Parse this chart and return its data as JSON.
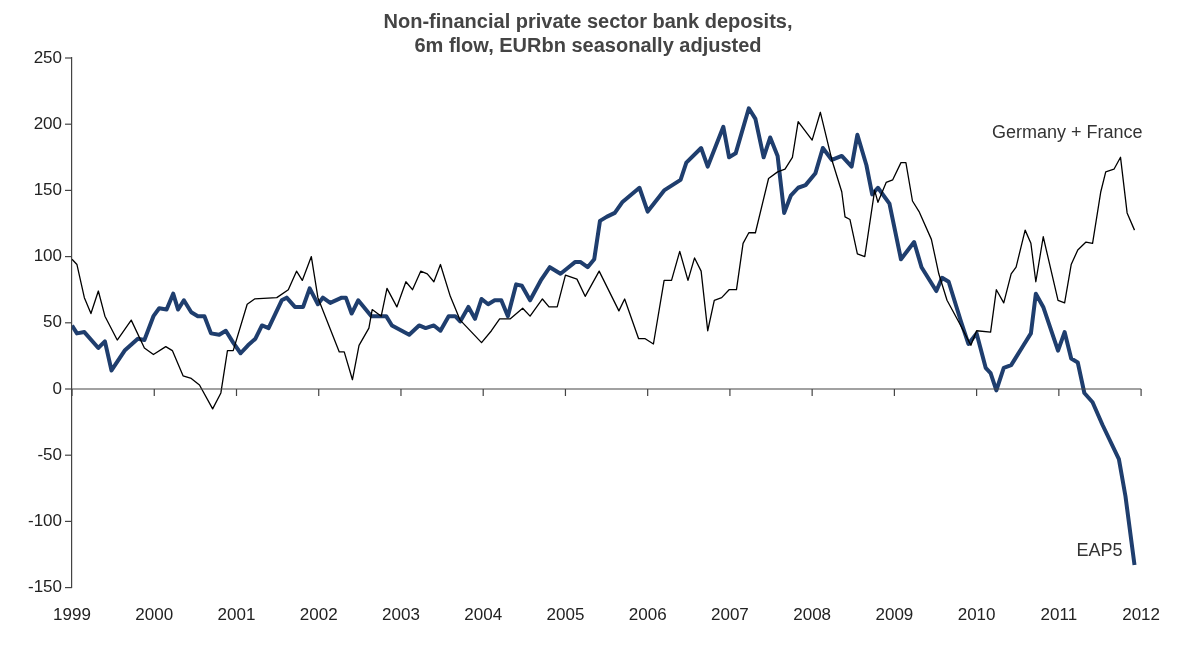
{
  "chart_data": {
    "type": "line",
    "title": "Non-financial private sector bank deposits,\n6m flow, EURbn seasonally adjusted",
    "xlim": [
      1999,
      2012
    ],
    "xticks": [
      1999,
      2000,
      2001,
      2002,
      2003,
      2004,
      2005,
      2006,
      2007,
      2008,
      2009,
      2010,
      2011,
      2012
    ],
    "ylim": [
      -150,
      250
    ],
    "yticks": [
      -150,
      -100,
      -50,
      0,
      50,
      100,
      150,
      200,
      250
    ],
    "legend": false,
    "marker": "none",
    "series": [
      {
        "name": "Germany + France",
        "color": "#000000",
        "x": [
          1999.0,
          1999.06,
          1999.15,
          1999.23,
          1999.32,
          1999.4,
          1999.55,
          1999.72,
          1999.88,
          1999.99,
          2000.14,
          2000.22,
          2000.35,
          2000.45,
          2000.55,
          2000.71,
          2000.81,
          2000.89,
          2000.96,
          2001.13,
          2001.22,
          2001.49,
          2001.63,
          2001.73,
          2001.8,
          2001.91,
          2001.99,
          2002.25,
          2002.31,
          2002.41,
          2002.49,
          2002.61,
          2002.65,
          2002.76,
          2002.83,
          2002.95,
          2003.06,
          2003.14,
          2003.24,
          2003.32,
          2003.4,
          2003.48,
          2003.6,
          2003.72,
          2003.98,
          2004.1,
          2004.2,
          2004.33,
          2004.48,
          2004.57,
          2004.72,
          2004.8,
          2004.9,
          2005.0,
          2005.14,
          2005.24,
          2005.41,
          2005.65,
          2005.72,
          2005.89,
          2005.97,
          2006.07,
          2006.2,
          2006.29,
          2006.39,
          2006.49,
          2006.57,
          2006.65,
          2006.73,
          2006.81,
          2006.9,
          2006.99,
          2007.08,
          2007.16,
          2007.23,
          2007.31,
          2007.47,
          2007.58,
          2007.67,
          2007.76,
          2007.83,
          2008.0,
          2008.1,
          2008.24,
          2008.36,
          2008.4,
          2008.46,
          2008.55,
          2008.64,
          2008.76,
          2008.8,
          2008.9,
          2008.98,
          2009.08,
          2009.14,
          2009.22,
          2009.3,
          2009.45,
          2009.54,
          2009.64,
          2009.78,
          2009.93,
          2010.0,
          2010.17,
          2010.24,
          2010.33,
          2010.42,
          2010.48,
          2010.59,
          2010.66,
          2010.72,
          2010.81,
          2010.99,
          2011.07,
          2011.15,
          2011.23,
          2011.33,
          2011.41,
          2011.51,
          2011.57,
          2011.67,
          2011.75,
          2011.83,
          2011.92
        ],
        "values": [
          98,
          94,
          69,
          57,
          74,
          55,
          37,
          52,
          31,
          26,
          32,
          29,
          10,
          8,
          3,
          -15,
          -3,
          29,
          29,
          64,
          68,
          69,
          75,
          89,
          82,
          100,
          69,
          28,
          28,
          7,
          33,
          46,
          60,
          55,
          76,
          62,
          81,
          75,
          89,
          87,
          81,
          94,
          70,
          52,
          35,
          44,
          53,
          53,
          61,
          55,
          68,
          62,
          62,
          86,
          83,
          70,
          89,
          59,
          68,
          38,
          38,
          34,
          82,
          82,
          104,
          82,
          99,
          89,
          44,
          67,
          69,
          75,
          75,
          110,
          118,
          118,
          159,
          164,
          166,
          175,
          202,
          188,
          209,
          173,
          149,
          130,
          128,
          102,
          100,
          150,
          141,
          156,
          158,
          171,
          171,
          142,
          134,
          113,
          87,
          67,
          51,
          33,
          44,
          43,
          75,
          65,
          87,
          92,
          120,
          110,
          81,
          115,
          67,
          65,
          94,
          105,
          111,
          110,
          149,
          164,
          166,
          175,
          133,
          120
        ]
      },
      {
        "name": "EAP5",
        "color": "#1f3e6e",
        "x": [
          1999.0,
          1999.06,
          1999.15,
          1999.32,
          1999.4,
          1999.48,
          1999.64,
          1999.8,
          1999.88,
          1999.99,
          2000.06,
          2000.15,
          2000.23,
          2000.29,
          2000.36,
          2000.45,
          2000.53,
          2000.61,
          2000.69,
          2000.79,
          2000.87,
          2000.96,
          2001.05,
          2001.14,
          2001.23,
          2001.31,
          2001.39,
          2001.55,
          2001.61,
          2001.71,
          2001.81,
          2001.89,
          2001.99,
          2002.05,
          2002.14,
          2002.28,
          2002.33,
          2002.4,
          2002.48,
          2002.64,
          2002.82,
          2002.89,
          2003.1,
          2003.22,
          2003.3,
          2003.4,
          2003.48,
          2003.58,
          2003.66,
          2003.72,
          2003.82,
          2003.9,
          2003.98,
          2004.06,
          2004.14,
          2004.22,
          2004.3,
          2004.4,
          2004.47,
          2004.57,
          2004.7,
          2004.81,
          2004.94,
          2005.02,
          2005.12,
          2005.18,
          2005.27,
          2005.35,
          2005.42,
          2005.5,
          2005.6,
          2005.69,
          2005.9,
          2006.0,
          2006.2,
          2006.4,
          2006.47,
          2006.65,
          2006.73,
          2006.92,
          2006.99,
          2007.07,
          2007.23,
          2007.31,
          2007.41,
          2007.49,
          2007.58,
          2007.66,
          2007.74,
          2007.83,
          2007.92,
          2008.04,
          2008.13,
          2008.24,
          2008.36,
          2008.48,
          2008.55,
          2008.66,
          2008.73,
          2008.8,
          2008.94,
          2009.08,
          2009.24,
          2009.33,
          2009.51,
          2009.58,
          2009.66,
          2009.81,
          2009.9,
          2010.0,
          2010.11,
          2010.17,
          2010.24,
          2010.33,
          2010.42,
          2010.57,
          2010.66,
          2010.72,
          2010.81,
          2010.99,
          2011.07,
          2011.15,
          2011.23,
          2011.31,
          2011.41,
          2011.53,
          2011.73,
          2011.81,
          2011.92
        ],
        "values": [
          48,
          42,
          43,
          31,
          36,
          14,
          29,
          38,
          37,
          55,
          61,
          60,
          72,
          60,
          67,
          58,
          55,
          55,
          42,
          41,
          44,
          35,
          27,
          33,
          38,
          48,
          46,
          67,
          69,
          62,
          62,
          76,
          64,
          69,
          65,
          69,
          69,
          57,
          67,
          55,
          55,
          48,
          41,
          48,
          46,
          48,
          44,
          55,
          55,
          51,
          62,
          53,
          68,
          64,
          67,
          67,
          55,
          79,
          78,
          67,
          82,
          92,
          87,
          91,
          96,
          96,
          92,
          98,
          127,
          130,
          133,
          141,
          152,
          134,
          150,
          158,
          171,
          182,
          168,
          198,
          175,
          178,
          212,
          204,
          175,
          190,
          176,
          133,
          146,
          152,
          154,
          163,
          182,
          173,
          176,
          168,
          192,
          169,
          147,
          152,
          140,
          98,
          111,
          92,
          74,
          84,
          81,
          51,
          34,
          42,
          16,
          12,
          -1,
          16,
          18,
          33,
          42,
          72,
          62,
          29,
          43,
          23,
          20,
          -3,
          -10,
          -27,
          -53,
          -81,
          -133
        ]
      }
    ]
  }
}
